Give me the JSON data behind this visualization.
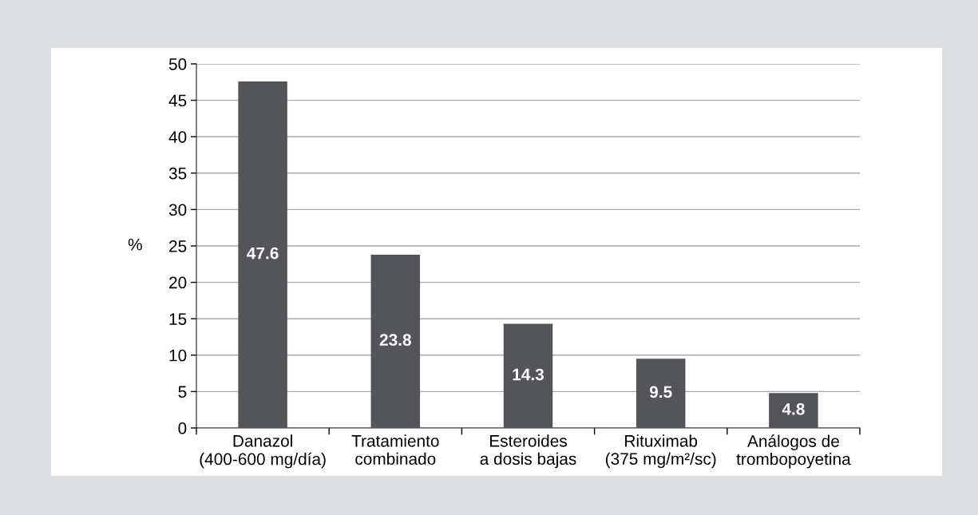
{
  "chart_data": {
    "type": "bar",
    "ylabel": "%",
    "categories": [
      "Danazol\n(400-600 mg/día)",
      "Tratamiento\ncombinado",
      "Esteroides\na dosis bajas",
      "Rituximab\n(375 mg/m²/sc)",
      "Análogos de\ntrombopoyetina"
    ],
    "values": [
      47.6,
      23.8,
      14.3,
      9.5,
      4.8
    ],
    "color": "#545559",
    "ylim": [
      0,
      50
    ],
    "yticks": [
      0,
      5,
      10,
      15,
      20,
      25,
      30,
      35,
      40,
      45,
      50
    ],
    "grid": "y",
    "data_labels": true
  }
}
